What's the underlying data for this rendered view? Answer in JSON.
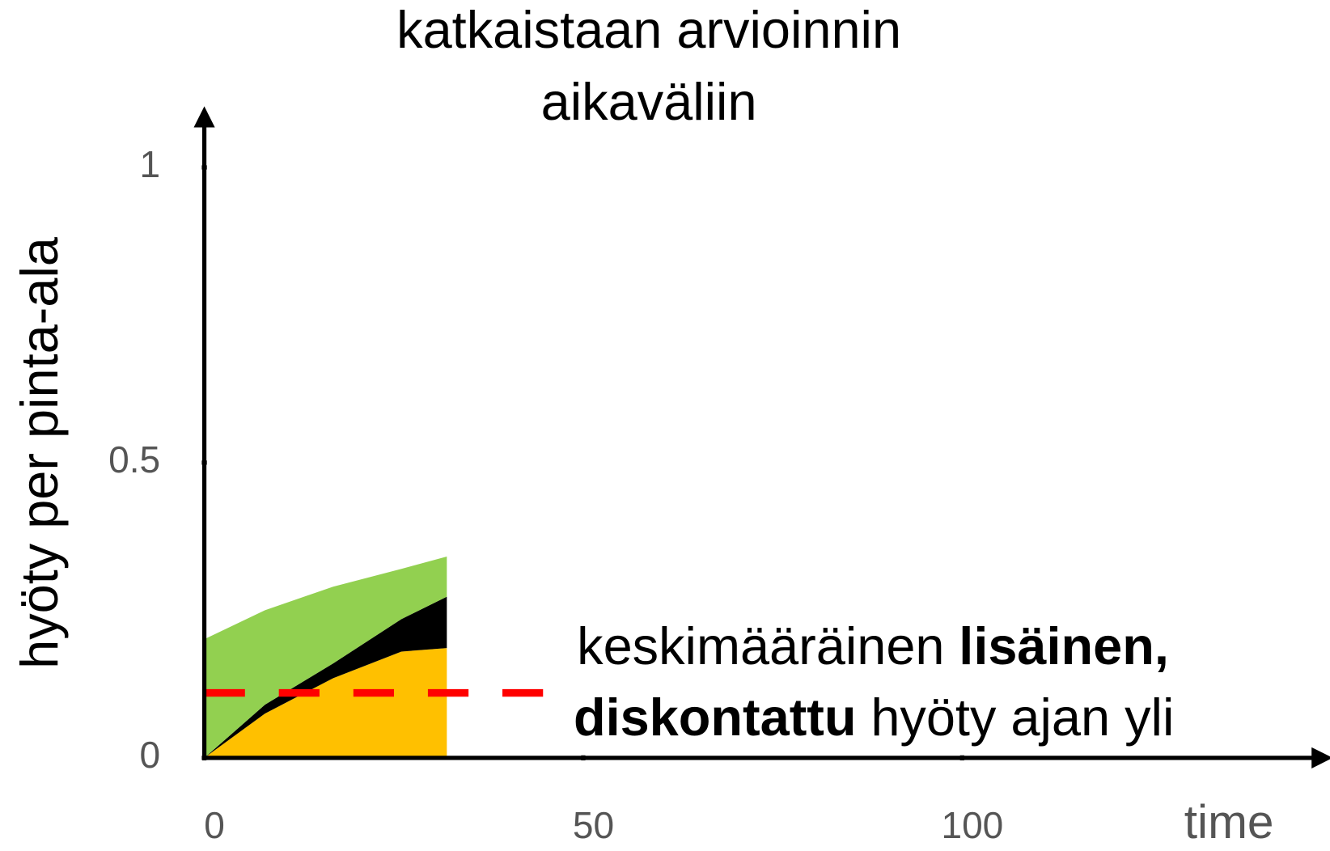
{
  "chart_data": {
    "type": "stacked_area",
    "title": [
      "katkaistaan arvioinnin",
      "aikaväliin"
    ],
    "y_label": "hyöty per pinta-ala",
    "x_label": "time",
    "x": [
      0,
      8,
      17,
      26,
      32
    ],
    "series": [
      {
        "color": "#ffc000",
        "values": [
          0,
          0.075,
          0.135,
          0.18,
          0.186
        ]
      },
      {
        "color": "#000000",
        "values": [
          0,
          0.015,
          0.025,
          0.055,
          0.087
        ]
      },
      {
        "color": "#92d050",
        "values": [
          0.201,
          0.16,
          0.13,
          0.085,
          0.068
        ]
      }
    ],
    "reference_line": {
      "y": 0.11,
      "x": [
        0,
        45
      ],
      "color": "#ff0000",
      "dashed": true
    },
    "annotation": [
      [
        {
          "text": "keskimääräinen",
          "bold": false
        },
        {
          "text": "lisäinen,",
          "bold": true
        }
      ],
      [
        {
          "text": "diskontattu",
          "bold": true
        },
        {
          "text": "hyöty ajan yli",
          "bold": false
        }
      ]
    ],
    "xlim": [
      0,
      147.5
    ],
    "ylim": [
      0,
      1.1
    ],
    "xticks": [
      0,
      50,
      100
    ],
    "yticks": [
      0,
      0.5,
      1
    ],
    "grid": false
  }
}
